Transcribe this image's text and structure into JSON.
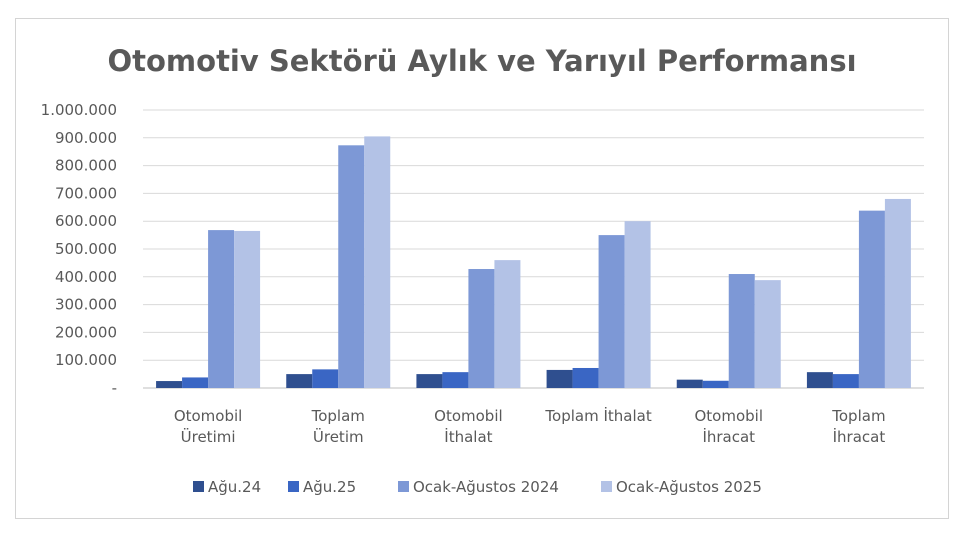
{
  "chart_data": {
    "type": "bar",
    "title": "Otomotiv Sektörü Aylık ve Yarıyıl Performansı",
    "categories": [
      [
        "Otomobil",
        "Üretimi"
      ],
      [
        "Toplam",
        "Üretim"
      ],
      [
        "Otomobil",
        "İthalat"
      ],
      [
        "Toplam İthalat"
      ],
      [
        "Otomobil",
        "İhracat"
      ],
      [
        "Toplam",
        "İhracat"
      ]
    ],
    "series": [
      {
        "name": "Ağu.24",
        "color": "#2f4f8f",
        "values": [
          25000,
          50000,
          50000,
          65000,
          30000,
          57000
        ]
      },
      {
        "name": "Ağu.25",
        "color": "#3a66c4",
        "values": [
          38000,
          67000,
          57000,
          72000,
          26000,
          50000
        ]
      },
      {
        "name": "Ocak-Ağustos 2024",
        "color": "#7d98d6",
        "values": [
          568000,
          873000,
          428000,
          550000,
          410000,
          638000
        ]
      },
      {
        "name": "Ocak-Ağustos 2025",
        "color": "#b3c2e6",
        "values": [
          565000,
          905000,
          460000,
          600000,
          388000,
          680000
        ]
      }
    ],
    "ylim": [
      0,
      1000000
    ],
    "yticks": [
      {
        "value": 0,
        "label": "-"
      },
      {
        "value": 100000,
        "label": "100.000"
      },
      {
        "value": 200000,
        "label": "200.000"
      },
      {
        "value": 300000,
        "label": "300.000"
      },
      {
        "value": 400000,
        "label": "400.000"
      },
      {
        "value": 500000,
        "label": "500.000"
      },
      {
        "value": 600000,
        "label": "600.000"
      },
      {
        "value": 700000,
        "label": "700.000"
      },
      {
        "value": 800000,
        "label": "800.000"
      },
      {
        "value": 900000,
        "label": "900.000"
      },
      {
        "value": 1000000,
        "label": "1.000.000"
      }
    ],
    "grid": true,
    "legend": "bottom"
  }
}
